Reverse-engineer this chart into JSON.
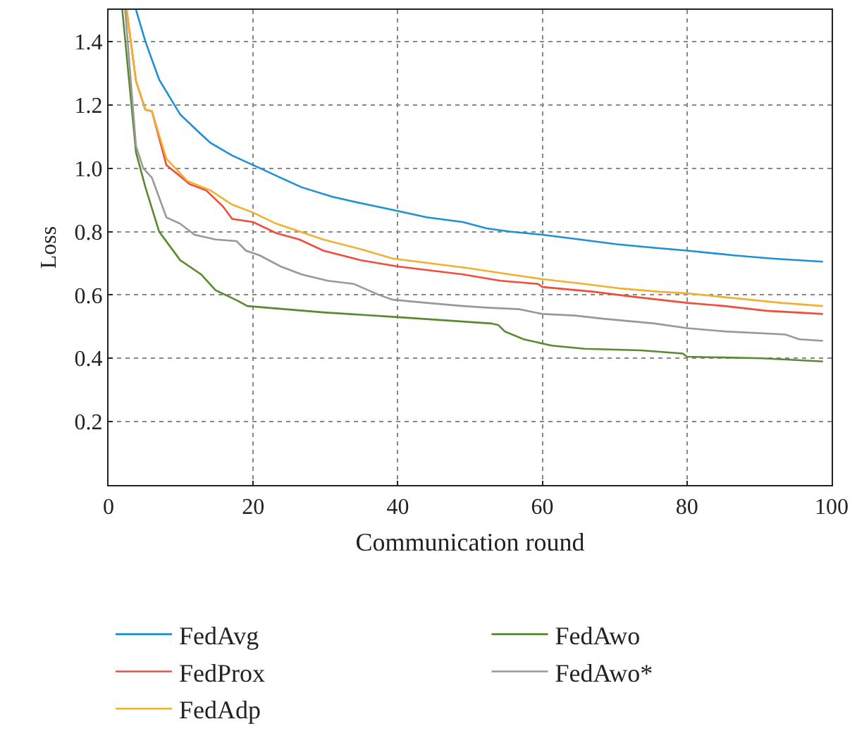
{
  "chart_data": {
    "type": "line",
    "xlabel": "Communication round",
    "ylabel": "Loss",
    "xlim": [
      0,
      100
    ],
    "ylim": [
      0,
      1.5
    ],
    "xticks": [
      0,
      20,
      40,
      60,
      80,
      100
    ],
    "yticks": [
      0.2,
      0.4,
      0.6,
      0.8,
      {
        "value": 1,
        "label": "1.0"
      },
      1.2,
      1.4
    ],
    "grid": true,
    "legend": "bottom",
    "line_style": "solid",
    "marker": "none",
    "series": [
      {
        "name": "FedAvg",
        "color": "#1f8fd6",
        "x": [
          3.8,
          5.1,
          7.0,
          9.9,
          12.2,
          14.1,
          17.1,
          20,
          23.8,
          26.7,
          30.9,
          34.8,
          40,
          44,
          49,
          52.3,
          55.5,
          60,
          65.2,
          70.3,
          74.9,
          80,
          86.5,
          91.7,
          98.8
        ],
        "values": [
          1.5,
          1.4,
          1.28,
          1.17,
          1.12,
          1.08,
          1.04,
          1.01,
          0.97,
          0.94,
          0.91,
          0.89,
          0.865,
          0.845,
          0.83,
          0.81,
          0.8,
          0.79,
          0.775,
          0.76,
          0.75,
          0.74,
          0.725,
          0.715,
          0.705
        ]
      },
      {
        "name": "FedProx",
        "color": "#f04e3a",
        "x": [
          2.5,
          3.8,
          5.1,
          6,
          8,
          9.9,
          11.2,
          13.5,
          15.8,
          17.1,
          20,
          23.2,
          26.4,
          29.7,
          34.8,
          40,
          49,
          54.2,
          59.4,
          60,
          67.1,
          72.3,
          80,
          85.2,
          91,
          98.8
        ],
        "values": [
          1.5,
          1.275,
          1.185,
          1.18,
          1.01,
          0.975,
          0.95,
          0.93,
          0.88,
          0.84,
          0.83,
          0.795,
          0.775,
          0.74,
          0.71,
          0.69,
          0.665,
          0.645,
          0.635,
          0.625,
          0.61,
          0.595,
          0.575,
          0.565,
          0.55,
          0.54
        ]
      },
      {
        "name": "FedAdp",
        "color": "#f0b030",
        "x": [
          2.5,
          3.8,
          5.1,
          6,
          8,
          10.9,
          14.1,
          17.1,
          20,
          23.2,
          29.7,
          34.8,
          39.3,
          49.7,
          55.5,
          60,
          65.8,
          71,
          76.2,
          80,
          86.5,
          93,
          98.8
        ],
        "values": [
          1.5,
          1.275,
          1.185,
          1.18,
          1.03,
          0.96,
          0.93,
          0.885,
          0.86,
          0.825,
          0.775,
          0.745,
          0.715,
          0.685,
          0.665,
          0.65,
          0.635,
          0.62,
          0.61,
          0.605,
          0.59,
          0.575,
          0.565
        ]
      },
      {
        "name": "FedAwo",
        "color": "#5a8a30",
        "x": [
          1.9,
          3.8,
          5.1,
          7.0,
          9.9,
          12.8,
          14.8,
          17.1,
          18,
          19.2,
          29.7,
          40,
          49.7,
          52.9,
          53.9,
          54.8,
          57.4,
          61.3,
          65.8,
          73.6,
          79.4,
          80,
          90.4,
          98.8
        ],
        "values": [
          1.5,
          1.05,
          0.94,
          0.8,
          0.71,
          0.665,
          0.615,
          0.59,
          0.58,
          0.565,
          0.545,
          0.53,
          0.515,
          0.51,
          0.505,
          0.485,
          0.46,
          0.44,
          0.43,
          0.425,
          0.415,
          0.405,
          0.4,
          0.39
        ]
      },
      {
        "name": "FedAwo*",
        "color": "#999999",
        "x": [
          2.3,
          3.8,
          4.8,
          6,
          8,
          9.9,
          11.9,
          14.8,
          17.7,
          19,
          20.9,
          23.8,
          26.7,
          30.3,
          33.9,
          37.4,
          39.3,
          44,
          49,
          52.3,
          56.8,
          60,
          64.5,
          68.4,
          75.5,
          80,
          85.2,
          93.6,
          95.5,
          98.8
        ],
        "values": [
          1.5,
          1.07,
          1.0,
          0.97,
          0.845,
          0.825,
          0.79,
          0.775,
          0.77,
          0.74,
          0.725,
          0.69,
          0.665,
          0.645,
          0.635,
          0.6,
          0.585,
          0.575,
          0.565,
          0.56,
          0.555,
          0.54,
          0.535,
          0.525,
          0.51,
          0.495,
          0.485,
          0.475,
          0.46,
          0.455
        ]
      }
    ]
  }
}
